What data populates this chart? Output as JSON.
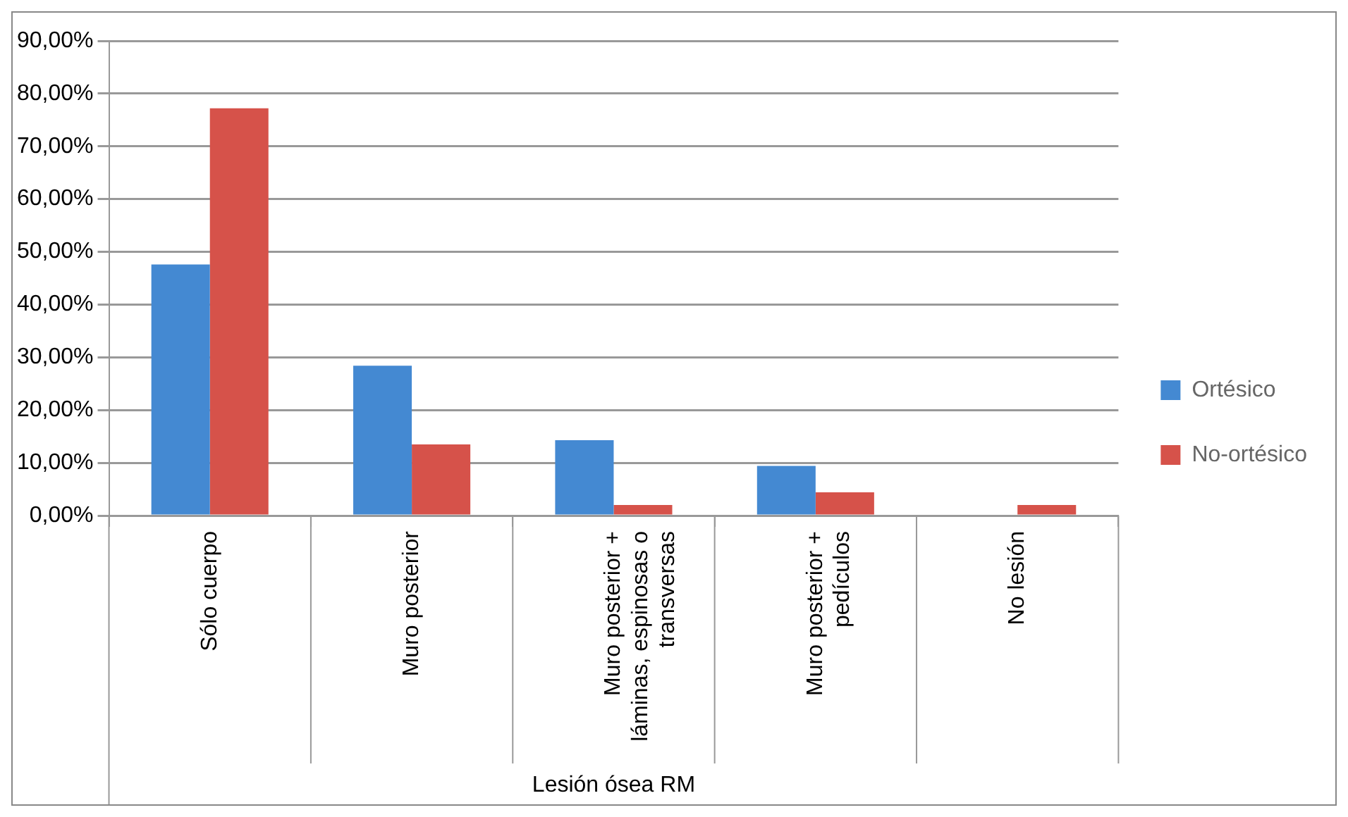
{
  "chart_data": {
    "type": "bar",
    "xlabel": "Lesión ósea RM",
    "categories": [
      "Sólo cuerpo",
      "Muro posterior",
      "Muro posterior + láminas, espinosas o transversas",
      "Muro posterior + pedículos",
      "No lesión"
    ],
    "series": [
      {
        "name": "Ortésico",
        "color": "#4489d2",
        "values": [
          47.6,
          28.4,
          14.3,
          9.4,
          0
        ]
      },
      {
        "name": "No-ortésico",
        "color": "#d6524a",
        "values": [
          77.2,
          13.5,
          2,
          4.4,
          2
        ]
      }
    ],
    "ylim": [
      0,
      90
    ],
    "yticks": [
      {
        "value": 0,
        "label": "0,00%"
      },
      {
        "value": 10,
        "label": "10,00%"
      },
      {
        "value": 20,
        "label": "20,00%"
      },
      {
        "value": 30,
        "label": "30,00%"
      },
      {
        "value": 40,
        "label": "40,00%"
      },
      {
        "value": 50,
        "label": "50,00%"
      },
      {
        "value": 60,
        "label": "60,00%"
      },
      {
        "value": 70,
        "label": "70,00%"
      },
      {
        "value": 80,
        "label": "80,00%"
      },
      {
        "value": 90,
        "label": "90,00%"
      }
    ],
    "grid": "y",
    "legend": "right"
  }
}
